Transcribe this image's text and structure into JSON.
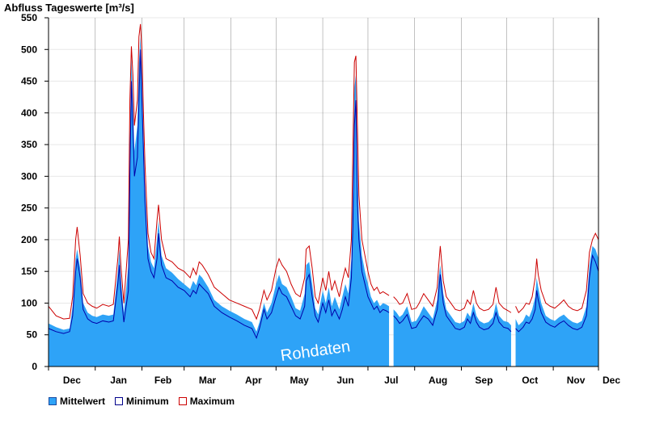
{
  "chart_data": {
    "type": "area",
    "title": "Abfluss Tageswerte [m³/s]",
    "watermark": "Rohdaten",
    "ylim": [
      0,
      550
    ],
    "yticks": [
      0,
      50,
      100,
      150,
      200,
      250,
      300,
      350,
      400,
      450,
      500,
      550
    ],
    "xlim": [
      0,
      365
    ],
    "month_labels": [
      {
        "label": "Dec",
        "day": 0
      },
      {
        "label": "Jan",
        "day": 31
      },
      {
        "label": "Feb",
        "day": 62
      },
      {
        "label": "Mar",
        "day": 90
      },
      {
        "label": "Apr",
        "day": 121
      },
      {
        "label": "May",
        "day": 151
      },
      {
        "label": "Jun",
        "day": 182
      },
      {
        "label": "Jul",
        "day": 212
      },
      {
        "label": "Aug",
        "day": 243
      },
      {
        "label": "Sep",
        "day": 274
      },
      {
        "label": "Oct",
        "day": 304
      },
      {
        "label": "Nov",
        "day": 335
      },
      {
        "label": "Dec",
        "day": 365
      }
    ],
    "gaps": [
      {
        "from": 227,
        "to": 228
      },
      {
        "from": 307,
        "to": 308
      }
    ],
    "series_points": [
      [
        0,
        60,
        68,
        95
      ],
      [
        5,
        55,
        62,
        80
      ],
      [
        10,
        52,
        58,
        75
      ],
      [
        14,
        55,
        60,
        76
      ],
      [
        16,
        80,
        95,
        110
      ],
      [
        18,
        150,
        170,
        200
      ],
      [
        19,
        170,
        185,
        220
      ],
      [
        21,
        140,
        155,
        175
      ],
      [
        23,
        90,
        100,
        115
      ],
      [
        26,
        75,
        85,
        100
      ],
      [
        29,
        70,
        80,
        95
      ],
      [
        32,
        68,
        78,
        92
      ],
      [
        36,
        72,
        82,
        98
      ],
      [
        40,
        70,
        80,
        95
      ],
      [
        43,
        72,
        82,
        98
      ],
      [
        46,
        130,
        150,
        170
      ],
      [
        47,
        160,
        185,
        205
      ],
      [
        48,
        120,
        140,
        160
      ],
      [
        50,
        70,
        85,
        100
      ],
      [
        53,
        120,
        160,
        200
      ],
      [
        54,
        300,
        360,
        420
      ],
      [
        55,
        450,
        490,
        505
      ],
      [
        56,
        380,
        420,
        460
      ],
      [
        57,
        300,
        340,
        380
      ],
      [
        59,
        330,
        380,
        420
      ],
      [
        60,
        420,
        480,
        520
      ],
      [
        61,
        500,
        520,
        540
      ],
      [
        62,
        420,
        460,
        500
      ],
      [
        63,
        340,
        370,
        400
      ],
      [
        64,
        260,
        290,
        320
      ],
      [
        66,
        170,
        190,
        210
      ],
      [
        68,
        150,
        165,
        180
      ],
      [
        70,
        140,
        155,
        170
      ],
      [
        72,
        170,
        200,
        230
      ],
      [
        73,
        210,
        230,
        255
      ],
      [
        75,
        160,
        175,
        200
      ],
      [
        78,
        140,
        155,
        170
      ],
      [
        82,
        135,
        148,
        165
      ],
      [
        86,
        125,
        138,
        155
      ],
      [
        90,
        120,
        130,
        150
      ],
      [
        94,
        110,
        122,
        140
      ],
      [
        96,
        120,
        135,
        155
      ],
      [
        98,
        115,
        128,
        145
      ],
      [
        100,
        130,
        145,
        165
      ],
      [
        102,
        125,
        140,
        160
      ],
      [
        106,
        115,
        125,
        145
      ],
      [
        110,
        95,
        105,
        125
      ],
      [
        115,
        85,
        95,
        115
      ],
      [
        120,
        78,
        88,
        105
      ],
      [
        125,
        72,
        82,
        100
      ],
      [
        130,
        65,
        75,
        95
      ],
      [
        135,
        60,
        70,
        90
      ],
      [
        138,
        45,
        55,
        75
      ],
      [
        140,
        60,
        70,
        90
      ],
      [
        143,
        90,
        100,
        120
      ],
      [
        145,
        75,
        85,
        105
      ],
      [
        148,
        85,
        100,
        120
      ],
      [
        151,
        110,
        130,
        155
      ],
      [
        153,
        125,
        145,
        170
      ],
      [
        155,
        115,
        130,
        160
      ],
      [
        158,
        110,
        125,
        150
      ],
      [
        161,
        95,
        110,
        130
      ],
      [
        164,
        80,
        92,
        115
      ],
      [
        167,
        75,
        88,
        110
      ],
      [
        170,
        95,
        115,
        140
      ],
      [
        171,
        135,
        160,
        185
      ],
      [
        173,
        145,
        165,
        190
      ],
      [
        175,
        110,
        130,
        155
      ],
      [
        177,
        80,
        92,
        110
      ],
      [
        179,
        70,
        82,
        100
      ],
      [
        182,
        100,
        120,
        140
      ],
      [
        184,
        85,
        100,
        120
      ],
      [
        186,
        105,
        125,
        150
      ],
      [
        188,
        80,
        95,
        120
      ],
      [
        190,
        90,
        110,
        135
      ],
      [
        193,
        75,
        90,
        110
      ],
      [
        195,
        90,
        110,
        135
      ],
      [
        197,
        110,
        130,
        155
      ],
      [
        199,
        95,
        115,
        140
      ],
      [
        201,
        140,
        170,
        200
      ],
      [
        202,
        220,
        280,
        340
      ],
      [
        203,
        380,
        440,
        480
      ],
      [
        204,
        420,
        460,
        490
      ],
      [
        205,
        260,
        320,
        380
      ],
      [
        206,
        200,
        230,
        270
      ],
      [
        208,
        150,
        175,
        200
      ],
      [
        210,
        130,
        150,
        175
      ],
      [
        212,
        110,
        130,
        150
      ],
      [
        214,
        100,
        110,
        130
      ],
      [
        216,
        90,
        100,
        120
      ],
      [
        218,
        95,
        105,
        125
      ],
      [
        220,
        85,
        95,
        115
      ],
      [
        222,
        90,
        100,
        118
      ],
      [
        224,
        88,
        98,
        115
      ],
      [
        226,
        85,
        95,
        112
      ],
      [
        229,
        80,
        90,
        110
      ],
      [
        231,
        75,
        85,
        105
      ],
      [
        233,
        68,
        78,
        98
      ],
      [
        235,
        72,
        82,
        100
      ],
      [
        238,
        82,
        95,
        115
      ],
      [
        241,
        60,
        70,
        90
      ],
      [
        244,
        62,
        72,
        92
      ],
      [
        246,
        70,
        80,
        100
      ],
      [
        249,
        80,
        95,
        115
      ],
      [
        252,
        75,
        85,
        105
      ],
      [
        255,
        65,
        75,
        95
      ],
      [
        258,
        90,
        105,
        125
      ],
      [
        259,
        120,
        140,
        160
      ],
      [
        260,
        145,
        160,
        190
      ],
      [
        262,
        100,
        115,
        135
      ],
      [
        264,
        80,
        90,
        110
      ],
      [
        267,
        70,
        80,
        100
      ],
      [
        270,
        60,
        70,
        90
      ],
      [
        273,
        58,
        68,
        88
      ],
      [
        276,
        62,
        72,
        92
      ],
      [
        278,
        75,
        85,
        105
      ],
      [
        280,
        68,
        78,
        98
      ],
      [
        282,
        85,
        100,
        120
      ],
      [
        284,
        70,
        80,
        100
      ],
      [
        286,
        62,
        72,
        92
      ],
      [
        289,
        58,
        68,
        88
      ],
      [
        292,
        60,
        70,
        90
      ],
      [
        295,
        68,
        78,
        98
      ],
      [
        297,
        85,
        100,
        125
      ],
      [
        299,
        70,
        80,
        100
      ],
      [
        302,
        62,
        72,
        92
      ],
      [
        305,
        60,
        70,
        88
      ],
      [
        307,
        55,
        65,
        85
      ],
      [
        310,
        60,
        75,
        95
      ],
      [
        312,
        55,
        65,
        85
      ],
      [
        315,
        62,
        72,
        92
      ],
      [
        317,
        70,
        82,
        100
      ],
      [
        319,
        68,
        78,
        98
      ],
      [
        321,
        75,
        90,
        110
      ],
      [
        323,
        90,
        110,
        140
      ],
      [
        324,
        120,
        140,
        170
      ],
      [
        325,
        105,
        125,
        145
      ],
      [
        327,
        85,
        100,
        120
      ],
      [
        330,
        70,
        80,
        100
      ],
      [
        333,
        65,
        75,
        95
      ],
      [
        336,
        62,
        72,
        92
      ],
      [
        339,
        68,
        78,
        98
      ],
      [
        342,
        72,
        82,
        105
      ],
      [
        345,
        65,
        75,
        95
      ],
      [
        348,
        60,
        70,
        90
      ],
      [
        351,
        58,
        68,
        88
      ],
      [
        354,
        62,
        72,
        92
      ],
      [
        357,
        80,
        95,
        120
      ],
      [
        359,
        140,
        160,
        180
      ],
      [
        361,
        175,
        190,
        200
      ],
      [
        363,
        165,
        185,
        210
      ],
      [
        365,
        150,
        170,
        200
      ]
    ]
  },
  "legend": {
    "items": [
      {
        "label": "Mittelwert",
        "fill": "#2ea3f7",
        "border": "#1a4aa0"
      },
      {
        "label": "Minimum",
        "fill": "#ffffff",
        "border": "#00008b"
      },
      {
        "label": "Maximum",
        "fill": "#ffffff",
        "border": "#cc0000"
      }
    ]
  },
  "colors": {
    "mean_fill": "#2ea3f7",
    "min_line": "#0000aa",
    "max_line": "#cc0000",
    "grid": "#e8e8e8"
  }
}
